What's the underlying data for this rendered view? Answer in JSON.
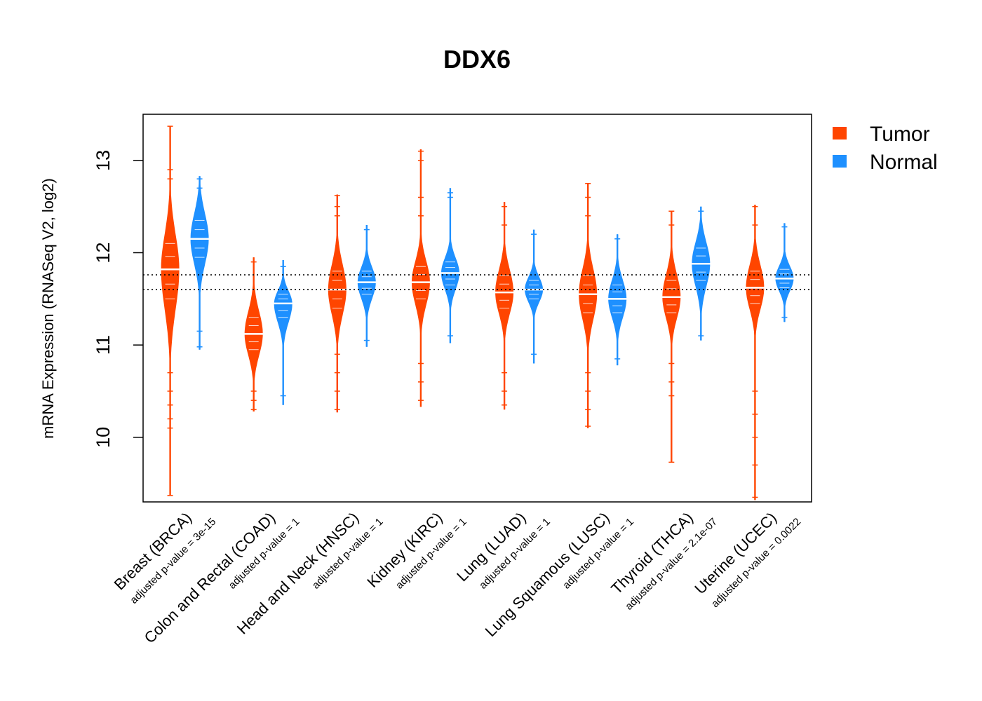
{
  "chart_data": {
    "type": "beanplot",
    "title": "DDX6",
    "ylabel": "mRNA Expression (RNASeq V2, log2)",
    "xlabel": "",
    "ylim": [
      9.3,
      13.5
    ],
    "yticks": [
      10,
      11,
      12,
      13
    ],
    "reference_lines": [
      11.6,
      11.76
    ],
    "legend": {
      "placement": "outside-top-right",
      "entries": [
        {
          "name": "Tumor",
          "color": "#FF4500"
        },
        {
          "name": "Normal",
          "color": "#1E90FF"
        }
      ]
    },
    "categories": [
      {
        "label": "Breast (BRCA)",
        "pvalue": "adjusted p-value = 3e-15",
        "tumor": {
          "median": 11.82,
          "min": 9.37,
          "max": 13.37,
          "q_low": 11.5,
          "q_high": 12.1,
          "outliers": [
            9.37,
            10.1,
            10.2,
            10.35,
            10.5,
            10.7,
            12.8,
            12.9,
            13.37
          ]
        },
        "normal": {
          "median": 12.15,
          "min": 10.95,
          "max": 12.83,
          "q_low": 11.95,
          "q_high": 12.35,
          "outliers": [
            10.98,
            11.15,
            12.7,
            12.8
          ]
        }
      },
      {
        "label": "Colon and Rectal (COAD)",
        "pvalue": "adjusted p-value = 1",
        "tumor": {
          "median": 11.12,
          "min": 10.28,
          "max": 11.95,
          "q_low": 10.95,
          "q_high": 11.3,
          "outliers": [
            10.3,
            10.4,
            10.5,
            11.9
          ]
        },
        "normal": {
          "median": 11.45,
          "min": 10.35,
          "max": 11.92,
          "q_low": 11.3,
          "q_high": 11.55,
          "outliers": [
            10.45,
            11.85
          ]
        }
      },
      {
        "label": "Head and Neck (HNSC)",
        "pvalue": "adjusted p-value = 1",
        "tumor": {
          "median": 11.6,
          "min": 10.27,
          "max": 12.63,
          "q_low": 11.4,
          "q_high": 11.8,
          "outliers": [
            10.3,
            10.5,
            10.7,
            10.9,
            12.4,
            12.5,
            12.62
          ]
        },
        "normal": {
          "median": 11.68,
          "min": 10.98,
          "max": 12.3,
          "q_low": 11.55,
          "q_high": 11.8,
          "outliers": [
            11.05,
            12.25
          ]
        }
      },
      {
        "label": "Kidney (KIRC)",
        "pvalue": "adjusted p-value = 1",
        "tumor": {
          "median": 11.68,
          "min": 10.33,
          "max": 13.12,
          "q_low": 11.5,
          "q_high": 11.85,
          "outliers": [
            10.4,
            10.6,
            10.8,
            12.4,
            12.6,
            13.0,
            13.1
          ]
        },
        "normal": {
          "median": 11.78,
          "min": 11.02,
          "max": 12.7,
          "q_low": 11.65,
          "q_high": 11.9,
          "outliers": [
            11.1,
            12.6,
            12.65
          ]
        }
      },
      {
        "label": "Lung (LUAD)",
        "pvalue": "adjusted p-value = 1",
        "tumor": {
          "median": 11.57,
          "min": 10.3,
          "max": 12.55,
          "q_low": 11.4,
          "q_high": 11.75,
          "outliers": [
            10.35,
            10.5,
            10.7,
            12.3,
            12.5
          ]
        },
        "normal": {
          "median": 11.6,
          "min": 10.8,
          "max": 12.25,
          "q_low": 11.5,
          "q_high": 11.7,
          "outliers": [
            10.9,
            12.2
          ]
        }
      },
      {
        "label": "Lung Squamous (LUSC)",
        "pvalue": "adjusted p-value = 1",
        "tumor": {
          "median": 11.55,
          "min": 10.1,
          "max": 12.75,
          "q_low": 11.35,
          "q_high": 11.75,
          "outliers": [
            10.12,
            10.3,
            10.5,
            10.7,
            12.4,
            12.6,
            12.75
          ]
        },
        "normal": {
          "median": 11.5,
          "min": 10.78,
          "max": 12.2,
          "q_low": 11.35,
          "q_high": 11.65,
          "outliers": [
            10.85,
            12.15
          ]
        }
      },
      {
        "label": "Thyroid (THCA)",
        "pvalue": "adjusted p-value = 2.1e-07",
        "tumor": {
          "median": 11.52,
          "min": 9.73,
          "max": 12.45,
          "q_low": 11.35,
          "q_high": 11.7,
          "outliers": [
            9.73,
            10.45,
            10.6,
            10.8,
            12.3,
            12.45
          ]
        },
        "normal": {
          "median": 11.88,
          "min": 11.05,
          "max": 12.5,
          "q_low": 11.7,
          "q_high": 12.05,
          "outliers": [
            11.1,
            12.45
          ]
        }
      },
      {
        "label": "Uterine (UCEC)",
        "pvalue": "adjusted p-value = 0.0022",
        "tumor": {
          "median": 11.62,
          "min": 9.32,
          "max": 12.52,
          "q_low": 11.45,
          "q_high": 11.8,
          "outliers": [
            9.35,
            9.7,
            10.0,
            10.25,
            10.5,
            12.3,
            12.5
          ]
        },
        "normal": {
          "median": 11.72,
          "min": 11.25,
          "max": 12.32,
          "q_low": 11.62,
          "q_high": 11.82,
          "outliers": [
            11.3,
            12.28
          ]
        }
      }
    ]
  }
}
